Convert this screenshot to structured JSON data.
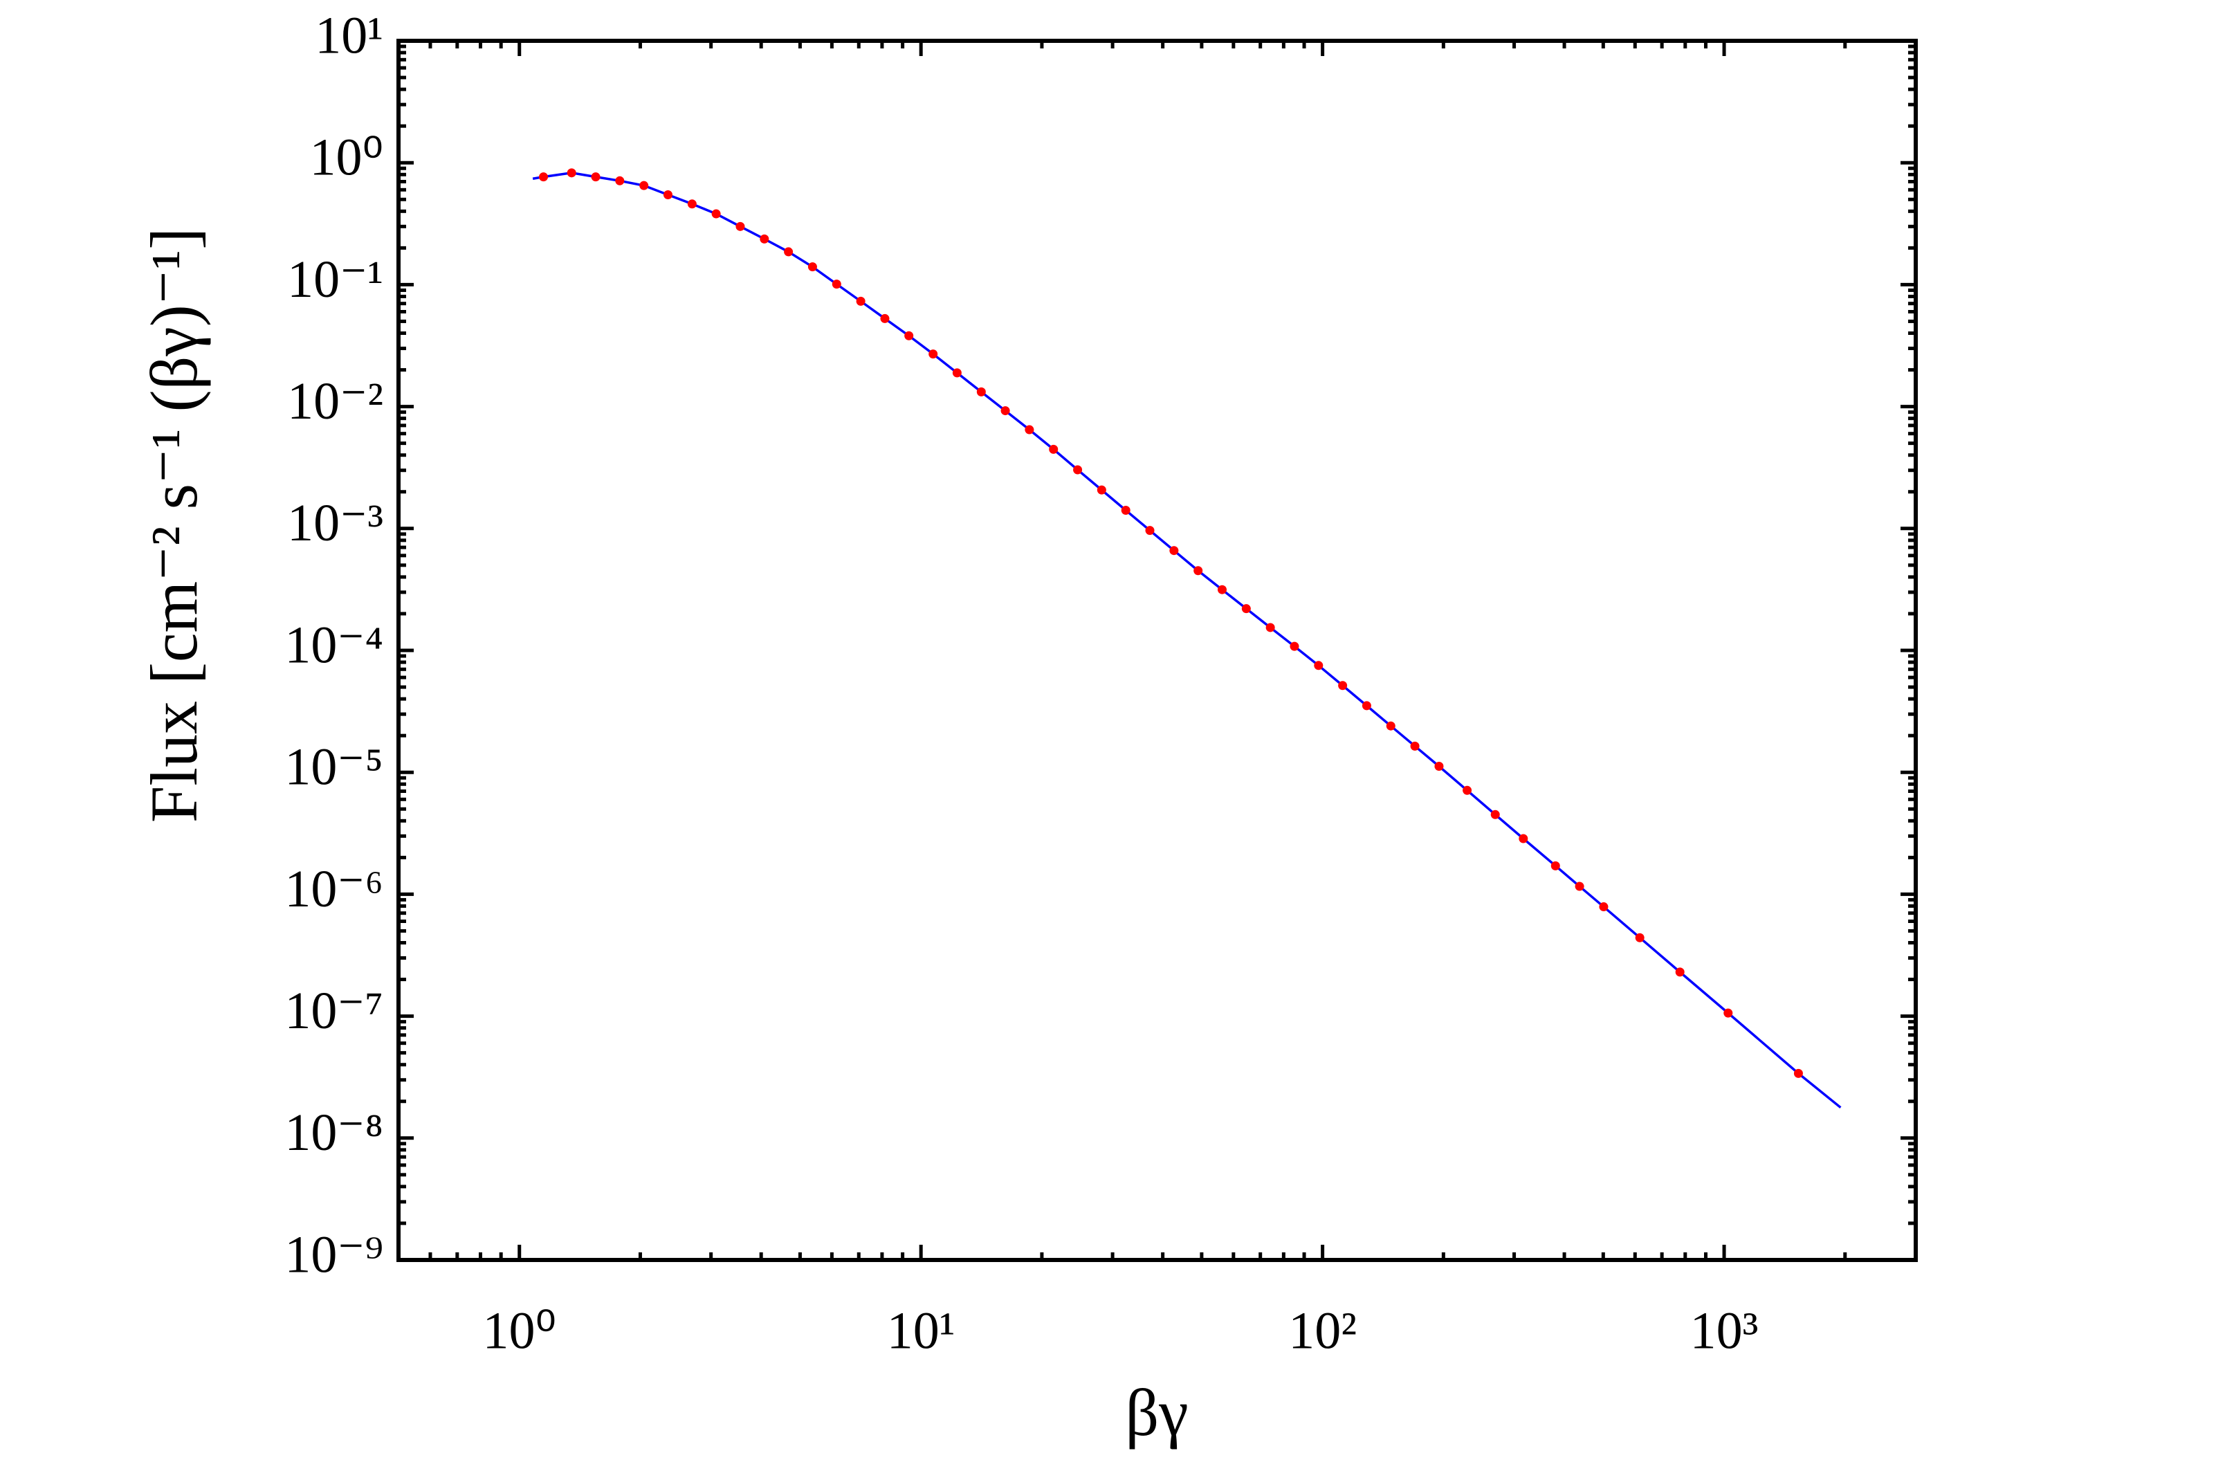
{
  "chart_data": {
    "type": "line",
    "x_label": "βγ",
    "y_label": "Flux [cm⁻² s⁻¹ (βγ)⁻¹]",
    "xscale": "log",
    "yscale": "log",
    "xlim": [
      0.5,
      3000
    ],
    "ylim": [
      1e-09,
      10
    ],
    "xticks": [
      {
        "value": 1,
        "label": "10⁰"
      },
      {
        "value": 10,
        "label": "10¹"
      },
      {
        "value": 100,
        "label": "10²"
      },
      {
        "value": 1000,
        "label": "10³"
      }
    ],
    "yticks": [
      {
        "value": 10,
        "label": "10¹"
      },
      {
        "value": 1,
        "label": "10⁰"
      },
      {
        "value": 0.1,
        "label": "10⁻¹"
      },
      {
        "value": 0.01,
        "label": "10⁻²"
      },
      {
        "value": 0.001,
        "label": "10⁻³"
      },
      {
        "value": 0.0001,
        "label": "10⁻⁴"
      },
      {
        "value": 1e-05,
        "label": "10⁻⁵"
      },
      {
        "value": 1e-06,
        "label": "10⁻⁶"
      },
      {
        "value": 1e-07,
        "label": "10⁻⁷"
      },
      {
        "value": 1e-08,
        "label": "10⁻⁸"
      },
      {
        "value": 1e-09,
        "label": "10⁻⁹"
      }
    ],
    "minor_ticks": true,
    "series": [
      {
        "style": "line",
        "color": "#0000ff",
        "x": [
          1.08,
          1.148,
          1.349,
          1.549,
          1.778,
          2.042,
          2.344,
          2.692,
          3.09,
          3.548,
          4.074,
          4.677,
          5.37,
          6.166,
          7.08,
          8.13,
          9.33,
          10.72,
          12.3,
          14.13,
          16.22,
          18.62,
          21.38,
          24.55,
          28.18,
          32.36,
          37.15,
          42.66,
          48.98,
          56.23,
          64.57,
          74.13,
          85.11,
          97.72,
          112.2,
          128.8,
          147.9,
          169.8,
          195.0,
          229.1,
          269.2,
          316.2,
          380.2,
          436.5,
          501.2,
          616.6,
          776.2,
          1023,
          1531,
          1950
        ],
        "values": [
          0.74,
          0.766,
          0.826,
          0.766,
          0.711,
          0.65,
          0.546,
          0.459,
          0.381,
          0.3,
          0.237,
          0.186,
          0.14,
          0.101,
          0.0731,
          0.0527,
          0.0381,
          0.027,
          0.0189,
          0.0132,
          0.00925,
          0.00646,
          0.00446,
          0.00303,
          0.00207,
          0.00141,
          0.000964,
          0.000659,
          0.000451,
          0.000315,
          0.00022,
          0.000154,
          0.000108,
          7.52e-05,
          5.15e-05,
          3.52e-05,
          2.4e-05,
          1.64e-05,
          1.12e-05,
          7.11e-06,
          4.5e-06,
          2.86e-06,
          1.71e-06,
          1.16e-06,
          7.89e-07,
          4.4e-07,
          2.3e-07,
          1.06e-07,
          3.39e-08,
          1.78e-08
        ]
      },
      {
        "style": "markers",
        "color": "#ff0000",
        "x": [
          1.148,
          1.349,
          1.549,
          1.778,
          2.042,
          2.344,
          2.692,
          3.09,
          3.548,
          4.074,
          4.677,
          5.37,
          6.166,
          7.08,
          8.13,
          9.33,
          10.72,
          12.3,
          14.13,
          16.22,
          18.62,
          21.38,
          24.55,
          28.18,
          32.36,
          37.15,
          42.66,
          48.98,
          56.23,
          64.57,
          74.13,
          85.11,
          97.72,
          112.2,
          128.8,
          147.9,
          169.8,
          195.0,
          229.1,
          269.2,
          316.2,
          380.2,
          436.5,
          501.2,
          616.6,
          776.2,
          1023,
          1531
        ],
        "values": [
          0.766,
          0.826,
          0.766,
          0.711,
          0.65,
          0.546,
          0.459,
          0.381,
          0.3,
          0.237,
          0.186,
          0.14,
          0.101,
          0.0731,
          0.0527,
          0.0381,
          0.027,
          0.0189,
          0.0132,
          0.00925,
          0.00646,
          0.00446,
          0.00303,
          0.00207,
          0.00141,
          0.000964,
          0.000659,
          0.000451,
          0.000315,
          0.00022,
          0.000154,
          0.000108,
          7.52e-05,
          5.15e-05,
          3.52e-05,
          2.4e-05,
          1.64e-05,
          1.12e-05,
          7.11e-06,
          4.5e-06,
          2.86e-06,
          1.71e-06,
          1.16e-06,
          7.89e-07,
          4.4e-07,
          2.3e-07,
          1.06e-07,
          3.39e-08
        ]
      }
    ]
  }
}
